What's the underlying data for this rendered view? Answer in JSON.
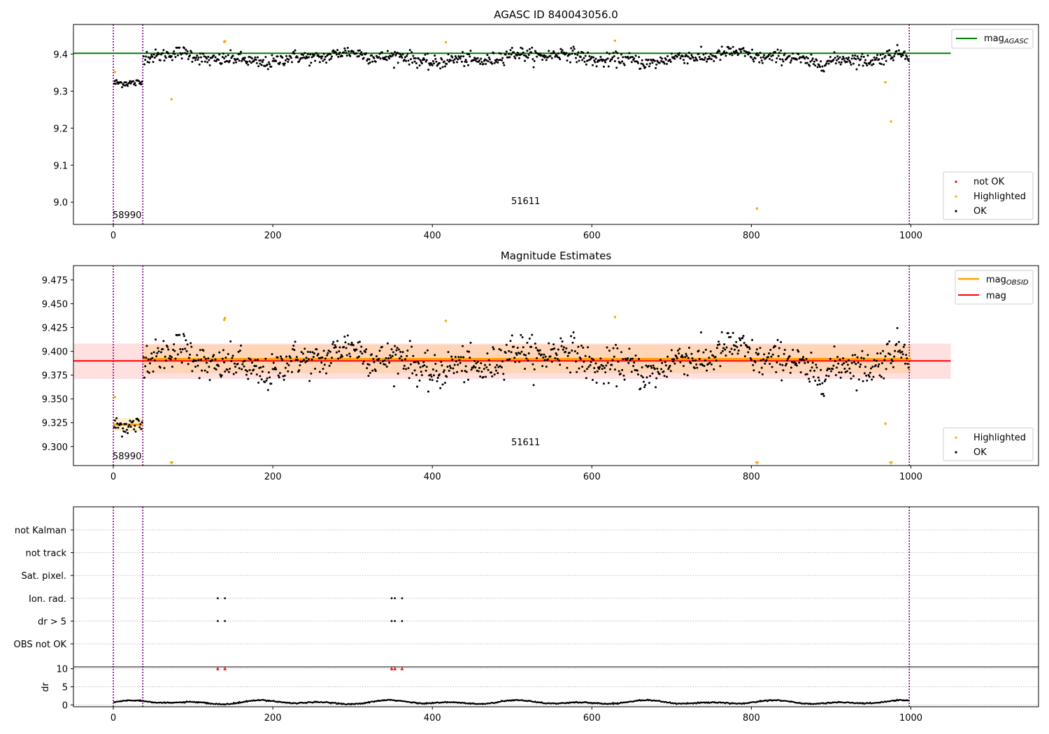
{
  "chart_data": [
    {
      "type": "scatter",
      "title": "AGASC ID 840043056.0",
      "xlim": [
        -50,
        1160
      ],
      "ylim": [
        8.94,
        9.48
      ],
      "xticks": [
        0,
        200,
        400,
        600,
        800,
        1000
      ],
      "yticks": [
        9.0,
        9.1,
        9.2,
        9.3,
        9.4
      ],
      "ytick_labels": [
        "9.0",
        "9.1",
        "9.2",
        "9.3",
        "9.4"
      ],
      "obsid_boundaries": [
        0,
        37,
        998
      ],
      "obsid_labels": [
        {
          "text": "58990",
          "x": 0
        },
        {
          "text": "51611",
          "x": 500
        }
      ],
      "mag_agasc": 9.402,
      "mag_agasc_xrange": [
        -50,
        1050
      ],
      "segments": [
        {
          "x": [
            0,
            37
          ],
          "mean": 9.322,
          "noise": 0.008
        },
        {
          "x": [
            37,
            998
          ],
          "mean": 9.39,
          "noise": 0.013
        }
      ],
      "highlighted_points": [
        {
          "x": 73,
          "y": 9.278
        },
        {
          "x": 139,
          "y": 9.433
        },
        {
          "x": 140,
          "y": 9.435
        },
        {
          "x": 417,
          "y": 9.432
        },
        {
          "x": 629,
          "y": 9.436
        },
        {
          "x": 807,
          "y": 8.983
        },
        {
          "x": 968,
          "y": 9.324
        },
        {
          "x": 975,
          "y": 9.218
        },
        {
          "x": 2,
          "y": 9.352
        }
      ],
      "legend_lines": [
        {
          "label": "mag",
          "subscript": "AGASC",
          "color": "#008000"
        }
      ],
      "legend_points": [
        {
          "label": "not OK",
          "color": "#ff0000"
        },
        {
          "label": "Highlighted",
          "color": "#ffa500"
        },
        {
          "label": "OK",
          "color": "#000000"
        }
      ]
    },
    {
      "type": "scatter",
      "title": "Magnitude Estimates",
      "xlim": [
        -50,
        1160
      ],
      "ylim": [
        9.28,
        9.49
      ],
      "xticks": [
        0,
        200,
        400,
        600,
        800,
        1000
      ],
      "yticks": [
        9.3,
        9.325,
        9.35,
        9.375,
        9.4,
        9.425,
        9.45,
        9.475
      ],
      "ytick_labels": [
        "9.300",
        "9.325",
        "9.350",
        "9.375",
        "9.400",
        "9.425",
        "9.450",
        "9.475"
      ],
      "obsid_boundaries": [
        0,
        37,
        998
      ],
      "obsid_labels": [
        {
          "text": "58990",
          "x": 0
        },
        {
          "text": "51611",
          "x": 500
        }
      ],
      "mag": 9.39,
      "mag_band": [
        9.371,
        9.408
      ],
      "mag_xrange": [
        -50,
        1050
      ],
      "mag_obsid": [
        {
          "x": [
            0,
            37
          ],
          "value": 9.323,
          "band": [
            9.316,
            9.33
          ]
        },
        {
          "x": [
            37,
            1000
          ],
          "value": 9.392,
          "band": [
            9.377,
            9.407
          ]
        }
      ],
      "highlighted_points": [
        {
          "x": 139,
          "y": 9.433
        },
        {
          "x": 140,
          "y": 9.435
        },
        {
          "x": 417,
          "y": 9.432
        },
        {
          "x": 629,
          "y": 9.436
        },
        {
          "x": 968,
          "y": 9.324
        },
        {
          "x": 2,
          "y": 9.352
        }
      ],
      "offscale_markers_x": [
        73,
        807,
        975
      ],
      "legend_lines": [
        {
          "label": "mag",
          "subscript": "OBSID",
          "color": "#ffa500"
        },
        {
          "label": "mag",
          "subscript": "",
          "color": "#ff0000"
        }
      ],
      "legend_points": [
        {
          "label": "Highlighted",
          "color": "#ffa500"
        },
        {
          "label": "OK",
          "color": "#000000"
        }
      ]
    },
    {
      "type": "scatter",
      "title": "",
      "xlim": [
        -50,
        1160
      ],
      "xticks": [
        0,
        200,
        400,
        600,
        800,
        1000
      ],
      "flag_labels": [
        "not Kalman",
        "not track",
        "Sat. pixel.",
        "Ion. rad.",
        "dr > 5",
        "OBS not OK"
      ],
      "flag_points": [
        {
          "flag": "Ion. rad.",
          "x": [
            131,
            140,
            349,
            353,
            362
          ]
        },
        {
          "flag": "dr > 5",
          "x": [
            131,
            140,
            349,
            353,
            362
          ]
        }
      ],
      "obsid_boundaries": [
        0,
        37,
        998
      ],
      "dr": {
        "ylabel": "dr",
        "yticks": [
          0,
          5,
          10
        ],
        "ylim": [
          -0.5,
          10.5
        ],
        "clipped_at": 10,
        "clipped_x": [
          131,
          140,
          349,
          353,
          362
        ],
        "typical_range": [
          0,
          1.4
        ]
      }
    }
  ]
}
